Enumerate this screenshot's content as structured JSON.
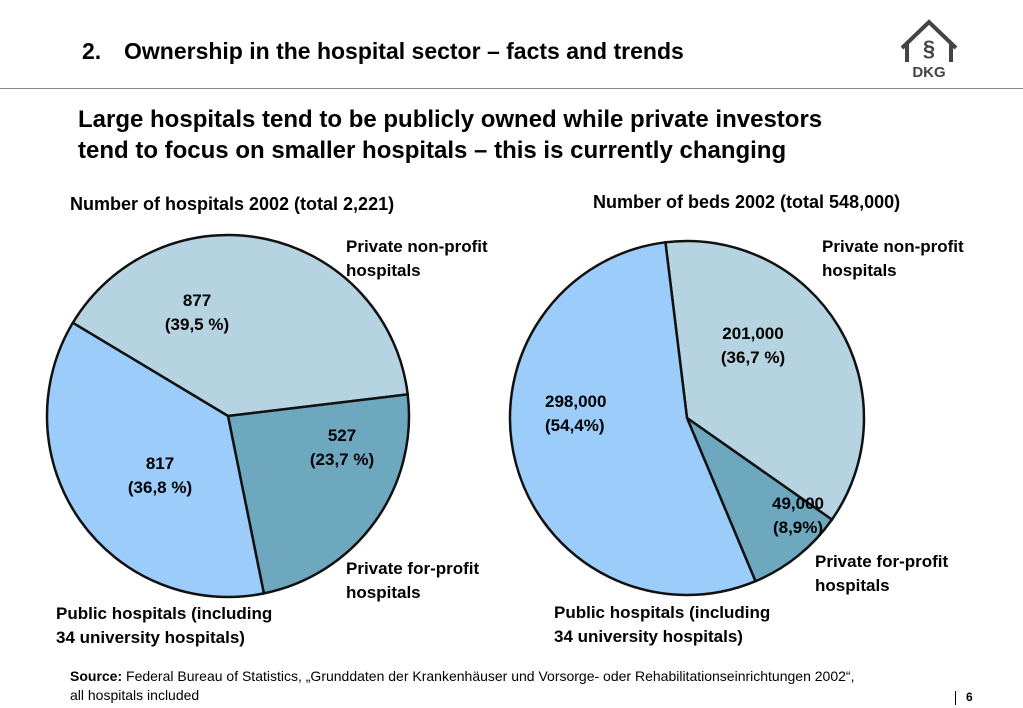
{
  "slide": {
    "number": "2.",
    "title": "Ownership in the hospital sector – facts and trends",
    "headline_line1": "Large hospitals tend to be publicly owned while private investors",
    "headline_line2": "tend to focus on smaller hospitals – this is currently changing",
    "logo_text": "DKG",
    "page_number": "6"
  },
  "colors": {
    "private_non_profit": "#b5d3e0",
    "private_for_profit": "#6ea8bf",
    "public": "#9cccfa",
    "outline": "#111111"
  },
  "chart_data": [
    {
      "type": "pie",
      "title": "Number of hospitals 2002 (total 2,221)",
      "slices": [
        {
          "key": "private_non_profit",
          "category_line1": "Private non-profit",
          "category_line2": "hospitals",
          "value": 877,
          "value_label": "877",
          "percent_label": "(39,5 %)"
        },
        {
          "key": "private_for_profit",
          "category_line1": "Private for-profit",
          "category_line2": "hospitals",
          "value": 527,
          "value_label": "527",
          "percent_label": "(23,7 %)"
        },
        {
          "key": "public",
          "category_line1": "Public hospitals (including",
          "category_line2": "34 university hospitals)",
          "value": 817,
          "value_label": "817",
          "percent_label": "(36,8 %)"
        }
      ]
    },
    {
      "type": "pie",
      "title": "Number of beds 2002 (total 548,000)",
      "slices": [
        {
          "key": "private_non_profit",
          "category_line1": "Private non-profit",
          "category_line2": "hospitals",
          "value": 201000,
          "value_label": "201,000",
          "percent_label": "(36,7 %)"
        },
        {
          "key": "private_for_profit",
          "category_line1": "Private for-profit",
          "category_line2": "hospitals",
          "value": 49000,
          "value_label": "49,000",
          "percent_label": "(8,9%)"
        },
        {
          "key": "public",
          "category_line1": "Public hospitals (including",
          "category_line2": "34 university hospitals)",
          "value": 298000,
          "value_label": "298,000",
          "percent_label": "(54,4%)"
        }
      ]
    }
  ],
  "source": {
    "label": "Source:",
    "text_line1": " Federal Bureau of Statistics, „Grunddaten der Krankenhäuser und Vorsorge- oder Rehabilitationseinrichtungen 2002“,",
    "text_line2": "all hospitals included"
  }
}
